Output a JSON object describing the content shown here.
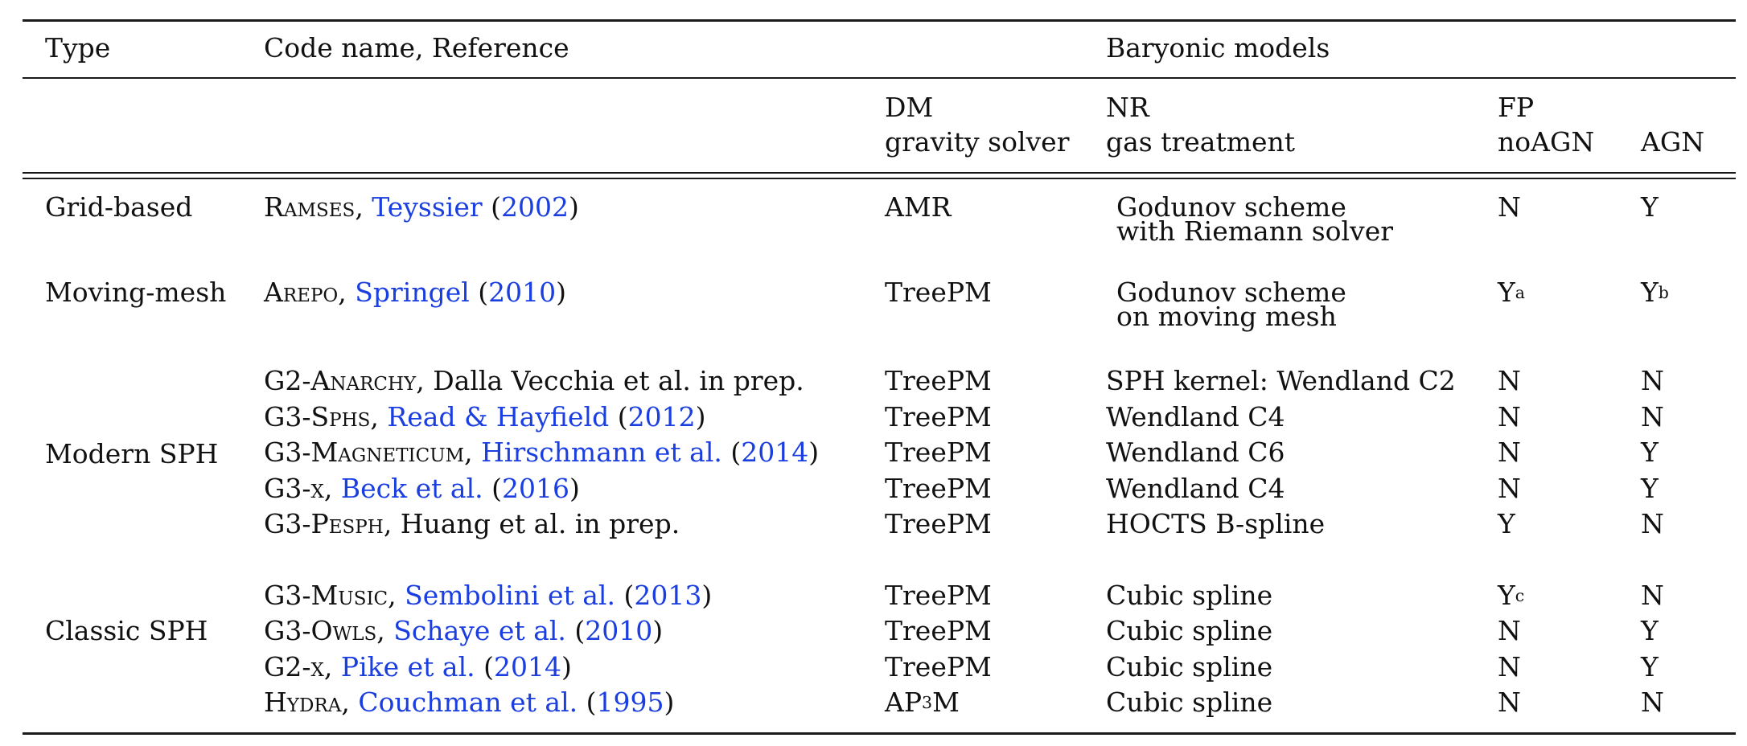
{
  "header": {
    "type": "Type",
    "code": "Code name, Reference",
    "baryonic": "Baryonic models",
    "dm_line1": "DM",
    "dm_line2": "gravity solver",
    "nr_line1": "NR",
    "nr_line2": "gas treatment",
    "fp_line1": "FP",
    "fp_line2": "noAGN",
    "agn": "AGN"
  },
  "groups": {
    "grid": "Grid-based",
    "moving": "Moving-mesh",
    "modern": "Modern SPH",
    "classic": "Classic SPH"
  },
  "rows": [
    {
      "prefix": "",
      "code": "Ramses",
      "sep": ", ",
      "ref": "Teyssier",
      "open": " (",
      "year": "2002",
      "close": ")",
      "solver": "AMR",
      "gas1": "Godunov scheme",
      "gas2": "with Riemann solver",
      "fp": "N",
      "fp_sup": "",
      "agn": "Y",
      "agn_sup": ""
    },
    {
      "prefix": "",
      "code": "Arepo",
      "sep": ", ",
      "ref": "Springel",
      "open": " (",
      "year": "2010",
      "close": ")",
      "solver": "TreePM",
      "gas1": "Godunov scheme",
      "gas2": "on moving mesh",
      "fp": "Y",
      "fp_sup": "a",
      "agn": "Y",
      "agn_sup": "b"
    },
    {
      "prefix": "G2-",
      "code": "Anarchy",
      "sep": ", ",
      "plain": "Dalla Vecchia et al. in prep.",
      "solver": "TreePM",
      "gas1": "SPH kernel: Wendland C2",
      "fp": "N",
      "agn": "N"
    },
    {
      "prefix": "G3-",
      "code": "Sphs",
      "sep": ", ",
      "ref": "Read & Hayfield",
      "open": " (",
      "year": "2012",
      "close": ")",
      "solver": "TreePM",
      "gas1": "Wendland C4",
      "fp": "N",
      "agn": "N"
    },
    {
      "prefix": "G3-",
      "code": "Magneticum",
      "sep": ", ",
      "ref": "Hirschmann et al.",
      "open": " (",
      "year": "2014",
      "close": ")",
      "solver": "TreePM",
      "gas1": "Wendland C6",
      "fp": "N",
      "agn": "Y"
    },
    {
      "prefix": "G3-",
      "code": "x",
      "sep": ", ",
      "ref": "Beck et al.",
      "open": " (",
      "year": "2016",
      "close": ")",
      "solver": "TreePM",
      "gas1": "Wendland C4",
      "fp": "N",
      "agn": "Y"
    },
    {
      "prefix": "G3-",
      "code": "Pesph",
      "sep": ", ",
      "plain": "Huang et al. in prep.",
      "solver": "TreePM",
      "gas1": "HOCTS B-spline",
      "fp": "Y",
      "agn": "N"
    },
    {
      "prefix": "G3-",
      "code": "Music",
      "sep": ", ",
      "ref": "Sembolini et al.",
      "open": " (",
      "year": "2013",
      "close": ")",
      "solver": "TreePM",
      "gas1": "Cubic spline",
      "fp": "Y",
      "fp_sup": "c",
      "agn": "N"
    },
    {
      "prefix": "G3-",
      "code": "Owls",
      "sep": ", ",
      "ref": "Schaye et al.",
      "open": " (",
      "year": "2010",
      "close": ")",
      "solver": "TreePM",
      "gas1": "Cubic spline",
      "fp": "N",
      "agn": "Y"
    },
    {
      "prefix": "G2-",
      "code": "x",
      "sep": ", ",
      "ref": "Pike et al.",
      "open": " (",
      "year": "2014",
      "close": ")",
      "solver": "TreePM",
      "gas1": "Cubic spline",
      "fp": "N",
      "agn": "Y"
    },
    {
      "prefix": "",
      "code": "Hydra",
      "sep": ", ",
      "ref": "Couchman et al.",
      "open": " (",
      "year": "1995",
      "close": ")",
      "solver_a": "AP",
      "solver_sup": "3",
      "solver_b": "M",
      "gas1": "Cubic spline",
      "fp": "N",
      "agn": "N"
    }
  ]
}
